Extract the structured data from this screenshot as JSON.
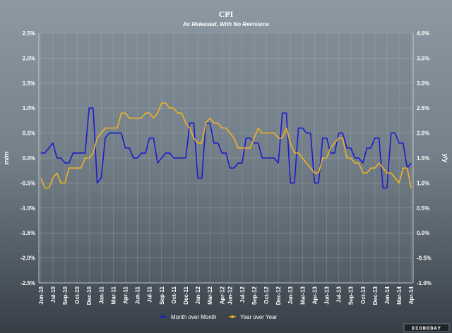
{
  "chart_data": {
    "type": "line",
    "title": "CPI",
    "subtitle": "As Released, With No Revisions",
    "ylabel_left": "m/m",
    "ylabel_right": "y/y",
    "y_left_range": [
      -2.5,
      2.5
    ],
    "y_right_range": [
      -1.0,
      4.0
    ],
    "y_left_ticks": [
      "2.5%",
      "2.0%",
      "1.5%",
      "1.0%",
      "0.5%",
      "0.0%",
      "-0.5%",
      "-1.0%",
      "-1.5%",
      "-2.0%",
      "-2.5%"
    ],
    "y_right_ticks": [
      "4.0%",
      "3.5%",
      "3.0%",
      "2.5%",
      "2.0%",
      "1.5%",
      "1.0%",
      "0.5%",
      "0.0%",
      "-0.5%",
      "-1.0%"
    ],
    "x_tick_labels": [
      "Jun-10",
      "Jul-10",
      "Sep-10",
      "Oct-10",
      "Dec-10",
      "Jan-11",
      "Mar-11",
      "Apr-11",
      "Jun-11",
      "Jul-11",
      "Sep-11",
      "Oct-11",
      "Dec-11",
      "Jan-12",
      "Mar-12",
      "Apr-12",
      "Jun-12",
      "Jul-12",
      "Sep-12",
      "Oct-12",
      "Dec-12",
      "Jan-13",
      "Mar-13",
      "Apr-13",
      "Jun-13",
      "Jul-13",
      "Sep-13",
      "Oct-13",
      "Dec-13",
      "Jan-14",
      "Mar-14",
      "Apr-14"
    ],
    "grid": true,
    "legend_position": "bottom-center",
    "series": [
      {
        "name": "Month over Month",
        "axis": "left",
        "color": "#1c1ccc",
        "values": [
          0.1,
          0.1,
          0.2,
          0.3,
          0.0,
          0.0,
          -0.1,
          -0.1,
          0.1,
          0.1,
          0.1,
          0.1,
          1.0,
          1.0,
          -0.5,
          -0.4,
          0.4,
          0.5,
          0.5,
          0.5,
          0.5,
          0.2,
          0.2,
          0.0,
          0.0,
          0.1,
          0.1,
          0.4,
          0.4,
          -0.1,
          0.0,
          0.1,
          0.1,
          0.0,
          0.0,
          0.0,
          0.0,
          0.7,
          0.7,
          -0.4,
          -0.4,
          0.7,
          0.7,
          0.3,
          0.3,
          0.1,
          0.1,
          -0.2,
          -0.2,
          -0.1,
          -0.1,
          0.4,
          0.4,
          0.3,
          0.3,
          0.0,
          0.0,
          0.0,
          0.0,
          -0.1,
          0.9,
          0.9,
          -0.5,
          -0.5,
          0.6,
          0.6,
          0.5,
          0.5,
          -0.5,
          -0.5,
          0.4,
          0.4,
          0.1,
          0.1,
          0.5,
          0.5,
          0.2,
          0.2,
          0.0,
          0.0,
          -0.1,
          0.2,
          0.2,
          0.4,
          0.4,
          -0.6,
          -0.6,
          0.5,
          0.5,
          0.3,
          0.3,
          -0.2,
          -0.1
        ]
      },
      {
        "name": "Year over Year",
        "axis": "right",
        "color": "#f0b323",
        "values": [
          1.1,
          0.9,
          0.9,
          1.1,
          1.2,
          1.0,
          1.0,
          1.3,
          1.3,
          1.3,
          1.3,
          1.5,
          1.5,
          1.6,
          1.9,
          2.0,
          2.1,
          2.1,
          2.1,
          2.1,
          2.4,
          2.4,
          2.3,
          2.3,
          2.3,
          2.3,
          2.4,
          2.4,
          2.3,
          2.4,
          2.6,
          2.6,
          2.5,
          2.5,
          2.4,
          2.4,
          2.2,
          2.1,
          1.9,
          1.8,
          1.8,
          2.2,
          2.3,
          2.2,
          2.2,
          2.1,
          2.1,
          2.0,
          1.9,
          1.7,
          1.7,
          1.7,
          1.7,
          1.9,
          2.1,
          2.0,
          2.0,
          2.0,
          2.0,
          1.9,
          1.9,
          2.1,
          1.8,
          1.6,
          1.6,
          1.5,
          1.4,
          1.3,
          1.2,
          1.2,
          1.5,
          1.5,
          1.7,
          1.8,
          1.9,
          1.9,
          1.5,
          1.5,
          1.4,
          1.4,
          1.2,
          1.2,
          1.3,
          1.3,
          1.4,
          1.3,
          1.2,
          1.2,
          1.1,
          1.0,
          1.3,
          1.3,
          0.9
        ]
      }
    ]
  },
  "branding": "ECONODAY"
}
